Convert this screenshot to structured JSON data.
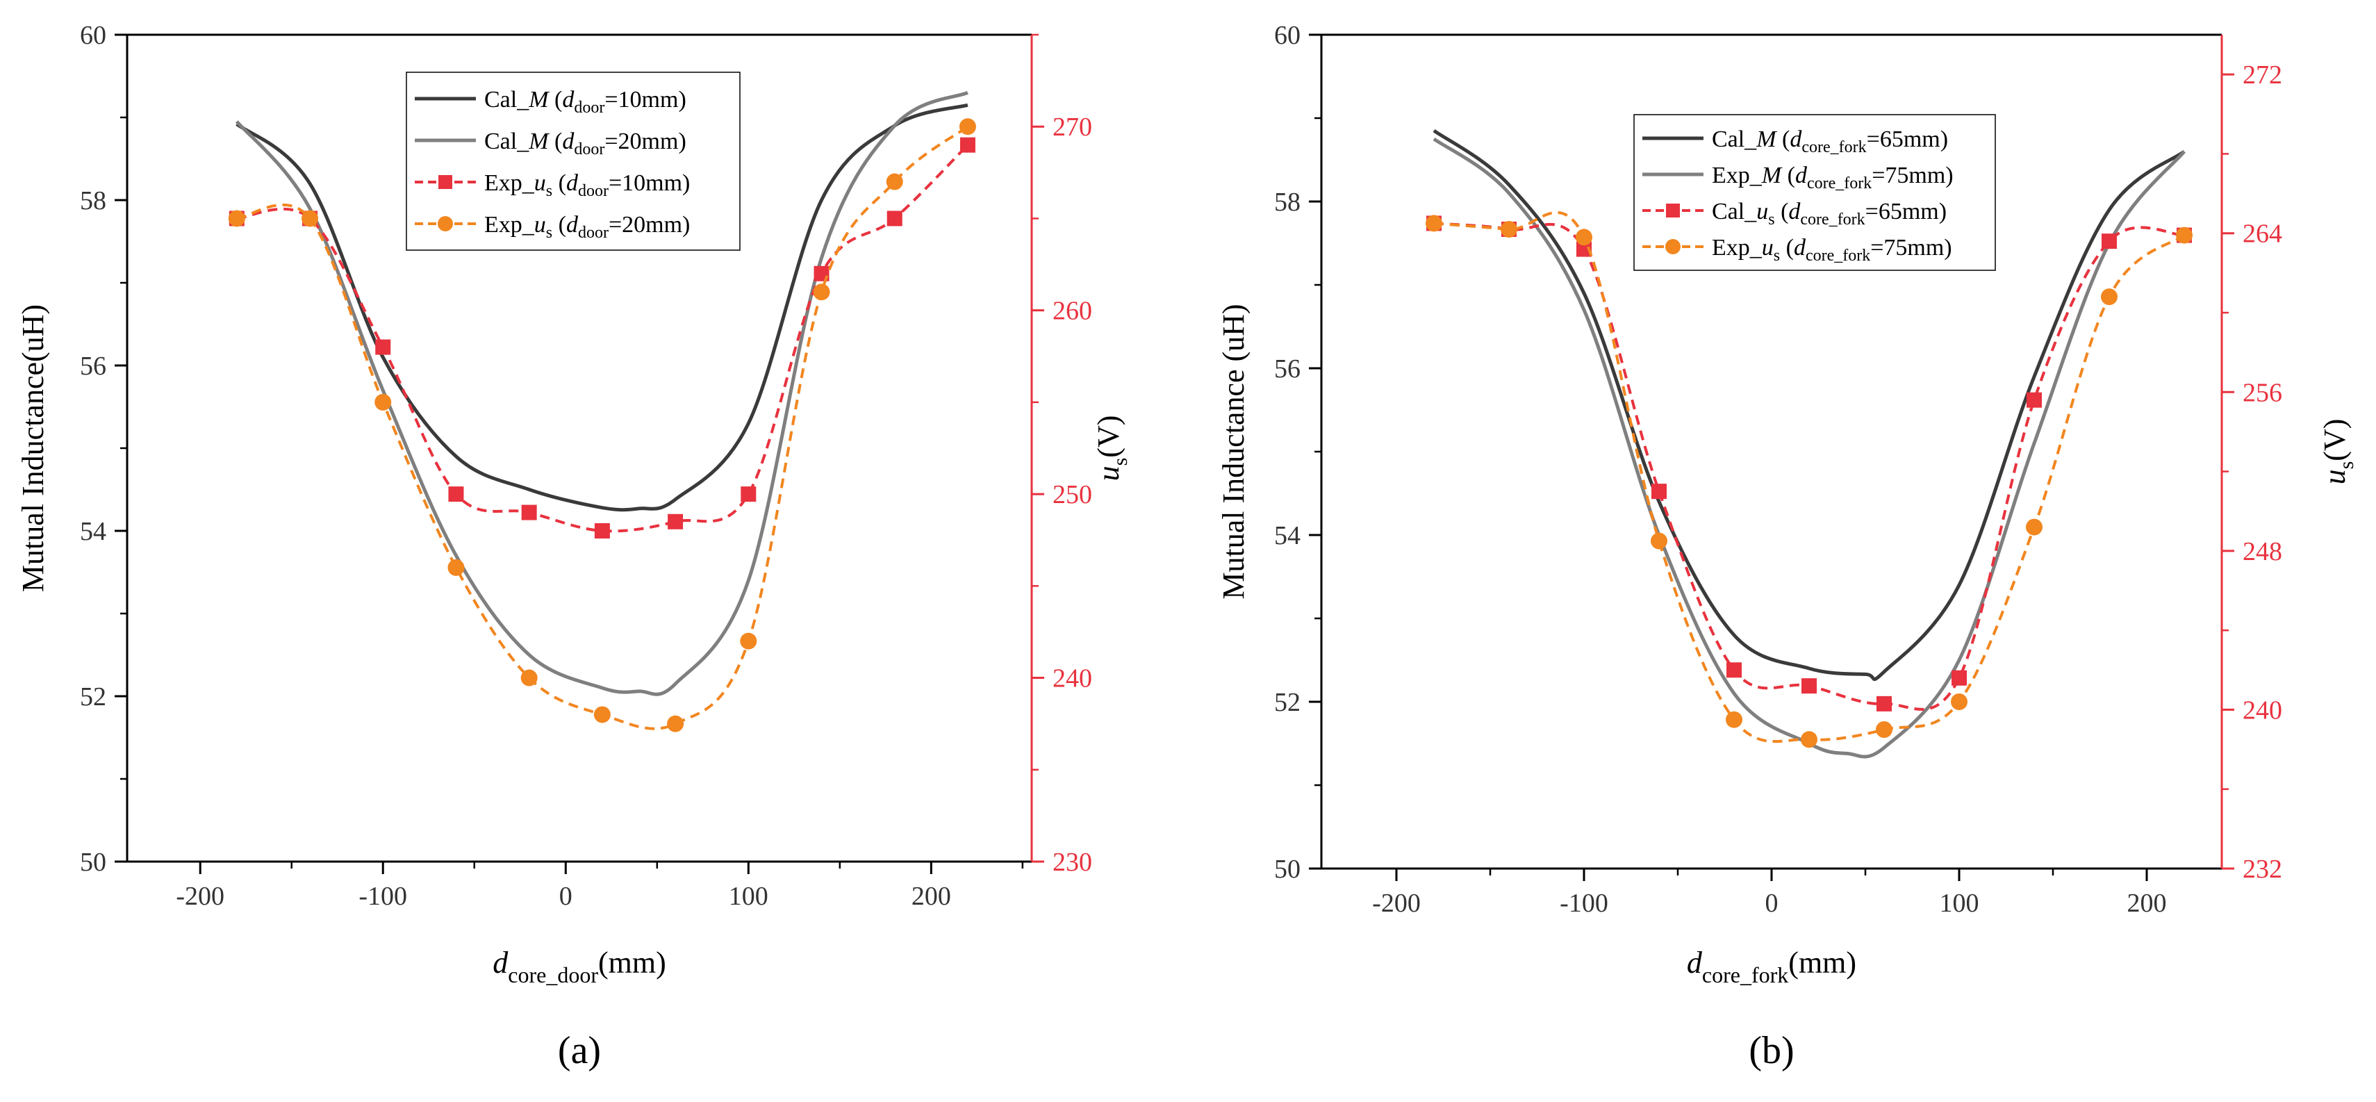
{
  "colors": {
    "cal_dark": "#3a3a3a",
    "cal_light": "#7f7f7f",
    "exp_red": "#e8323e",
    "exp_orange": "#f2861f",
    "axis_black": "#000000",
    "axis_right": "#e8323e"
  },
  "chart_data": [
    {
      "type": "line",
      "panel_label": "(a)",
      "xlabel": {
        "main": "d",
        "sub": "core_door",
        "unit": "(mm)"
      },
      "ylabel_left": "Mutual Inductance(uH)",
      "ylabel_right": {
        "main": "u",
        "sub": "s",
        "unit": "(V)"
      },
      "xlim": [
        -240,
        255
      ],
      "ylim_left": [
        50,
        60
      ],
      "ylim_right": [
        230,
        275
      ],
      "x_ticks": [
        -200,
        -100,
        0,
        100,
        200
      ],
      "x_tick_labels": [
        "-200",
        "-100",
        "0",
        "100",
        "200"
      ],
      "y_left_ticks": [
        50,
        52,
        54,
        56,
        58,
        60
      ],
      "y_left_tick_labels": [
        "50",
        "52",
        "54",
        "56",
        "58",
        "60"
      ],
      "y_right_ticks": [
        230,
        240,
        250,
        260,
        270
      ],
      "y_right_tick_labels": [
        "230",
        "240",
        "250",
        "260",
        "270"
      ],
      "legend_position": "top-center",
      "series": [
        {
          "name": "Cal_M (d_door=10mm)",
          "legend": {
            "prefix": "Cal_",
            "var": "M",
            "paren_open": " (",
            "sub_var": "d",
            "sub": "door",
            "rest": "=10mm)"
          },
          "axis": "left",
          "style": "solid",
          "marker": "none",
          "color_key": "cal_dark",
          "x": [
            -180,
            -140,
            -100,
            -60,
            -20,
            20,
            40,
            60,
            100,
            140,
            180,
            220
          ],
          "y": [
            58.92,
            58.2,
            56.1,
            54.9,
            54.5,
            54.28,
            54.27,
            54.38,
            55.3,
            58.0,
            58.9,
            59.15
          ]
        },
        {
          "name": "Cal_M (d_door=20mm)",
          "legend": {
            "prefix": "Cal_",
            "var": "M",
            "paren_open": " (",
            "sub_var": "d",
            "sub": "door",
            "rest": "=20mm)"
          },
          "axis": "left",
          "style": "solid",
          "marker": "none",
          "color_key": "cal_light",
          "x": [
            -180,
            -140,
            -100,
            -60,
            -20,
            20,
            40,
            60,
            100,
            140,
            180,
            220
          ],
          "y": [
            58.95,
            57.9,
            55.7,
            53.7,
            52.5,
            52.1,
            52.06,
            52.15,
            53.4,
            57.3,
            58.9,
            59.3
          ]
        },
        {
          "name": "Exp_us (d_door=10mm)",
          "legend": {
            "prefix": "Exp_",
            "var": "u",
            "var_sub": "s",
            "paren_open": " (",
            "sub_var": "d",
            "sub": "door",
            "rest": "=10mm)"
          },
          "axis": "right",
          "style": "dashed",
          "marker": "square",
          "color_key": "exp_red",
          "x": [
            -180,
            -140,
            -100,
            -60,
            -20,
            20,
            60,
            100,
            140,
            180,
            220
          ],
          "y": [
            265,
            265,
            258,
            250,
            249,
            248,
            248.5,
            250,
            262,
            265,
            269
          ]
        },
        {
          "name": "Exp_us (d_door=20mm)",
          "legend": {
            "prefix": "Exp_",
            "var": "u",
            "var_sub": "s",
            "paren_open": " (",
            "sub_var": "d",
            "sub": "door",
            "rest": "=20mm)"
          },
          "axis": "right",
          "style": "dashed",
          "marker": "circle",
          "color_key": "exp_orange",
          "x": [
            -180,
            -140,
            -100,
            -60,
            -20,
            20,
            60,
            100,
            140,
            180,
            220
          ],
          "y": [
            265,
            265,
            255,
            246,
            240,
            238,
            237.5,
            242,
            261,
            267,
            270
          ]
        }
      ]
    },
    {
      "type": "line",
      "panel_label": "(b)",
      "xlabel": {
        "main": "d",
        "sub": "core_fork",
        "unit": "(mm)"
      },
      "ylabel_left": "Mutual Inductance (uH)",
      "ylabel_right": {
        "main": "u",
        "sub": "s",
        "unit": "(V)"
      },
      "xlim": [
        -240,
        240
      ],
      "ylim_left": [
        50,
        60
      ],
      "ylim_right": [
        232,
        274
      ],
      "x_ticks": [
        -200,
        -100,
        0,
        100,
        200
      ],
      "x_tick_labels": [
        "-200",
        "-100",
        "0",
        "100",
        "200"
      ],
      "y_left_ticks": [
        50,
        52,
        54,
        56,
        58,
        60
      ],
      "y_left_tick_labels": [
        "50",
        "52",
        "54",
        "56",
        "58",
        "60"
      ],
      "y_right_ticks": [
        232,
        240,
        248,
        256,
        264,
        272
      ],
      "y_right_tick_labels": [
        "232",
        "240",
        "248",
        "256",
        "264",
        "272"
      ],
      "legend_position": "top-center",
      "series": [
        {
          "name": "Cal_M (d_core_fork=65mm)",
          "legend": {
            "prefix": "Cal_",
            "var": "M",
            "paren_open": " (",
            "sub_var": "d",
            "sub": "core_fork",
            "rest": "=65mm)"
          },
          "axis": "left",
          "style": "solid",
          "marker": "none",
          "color_key": "cal_dark",
          "x": [
            -180,
            -140,
            -100,
            -60,
            -20,
            20,
            50,
            60,
            100,
            140,
            180,
            220
          ],
          "y": [
            58.85,
            58.2,
            56.9,
            54.4,
            52.8,
            52.4,
            52.33,
            52.36,
            53.4,
            55.9,
            57.9,
            58.6
          ]
        },
        {
          "name": "Exp_M (d_core_fork=75mm)",
          "legend": {
            "prefix": "Exp_",
            "var": "M",
            "paren_open": " (",
            "sub_var": "d",
            "sub": "core_fork",
            "rest": "=75mm)"
          },
          "axis": "left",
          "style": "solid",
          "marker": "none",
          "color_key": "cal_light",
          "x": [
            -180,
            -140,
            -100,
            -60,
            -20,
            20,
            40,
            60,
            100,
            140,
            180,
            220
          ],
          "y": [
            58.75,
            58.1,
            56.7,
            54.0,
            52.1,
            51.5,
            51.38,
            51.45,
            52.5,
            55.1,
            57.5,
            58.6
          ]
        },
        {
          "name": "Cal_us (d_core_fork=65mm)",
          "legend": {
            "prefix": "Cal_",
            "var": "u",
            "var_sub": "s",
            "paren_open": " (",
            "sub_var": "d",
            "sub": "core_fork",
            "rest": "=65mm)"
          },
          "axis": "right",
          "style": "dashed",
          "marker": "square",
          "color_key": "exp_red",
          "x": [
            -180,
            -140,
            -100,
            -60,
            -20,
            20,
            60,
            100,
            140,
            180,
            220
          ],
          "y": [
            264.5,
            264.2,
            263.2,
            251.0,
            242.0,
            241.2,
            240.3,
            241.6,
            255.6,
            263.6,
            263.9
          ]
        },
        {
          "name": "Exp_us (d_core_fork=75mm)",
          "legend": {
            "prefix": "Exp_",
            "var": "u",
            "var_sub": "s",
            "paren_open": " (",
            "sub_var": "d",
            "sub": "core_fork",
            "rest": "=75mm)"
          },
          "axis": "right",
          "style": "dashed",
          "marker": "circle",
          "color_key": "exp_orange",
          "x": [
            -180,
            -140,
            -100,
            -60,
            -20,
            20,
            60,
            100,
            140,
            180,
            220
          ],
          "y": [
            264.5,
            264.2,
            263.8,
            248.5,
            239.5,
            238.5,
            239.0,
            240.4,
            249.2,
            260.8,
            263.9
          ]
        }
      ]
    }
  ]
}
